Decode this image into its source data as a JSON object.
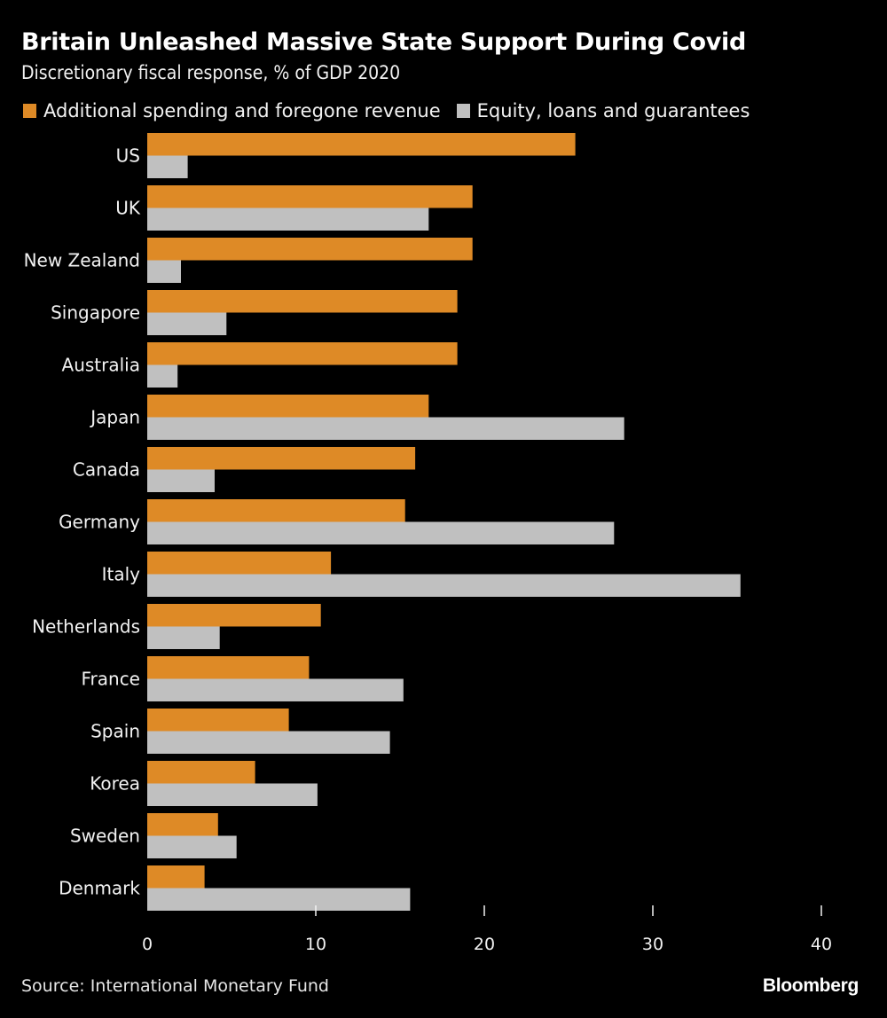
{
  "chart_data": {
    "type": "bar",
    "orientation": "horizontal",
    "title": "Britain Unleashed Massive State Support During Covid",
    "subtitle": "Discretionary fiscal response, % of GDP 2020",
    "xlabel": "",
    "ylabel": "",
    "xlim": [
      0,
      40
    ],
    "xticks": [
      0,
      10,
      20,
      30,
      40
    ],
    "grid": false,
    "legend_position": "top-left",
    "categories": [
      "US",
      "UK",
      "New Zealand",
      "Singapore",
      "Australia",
      "Japan",
      "Canada",
      "Germany",
      "Italy",
      "Netherlands",
      "France",
      "Spain",
      "Korea",
      "Sweden",
      "Denmark"
    ],
    "series": [
      {
        "name": "Additional spending and foregone revenue",
        "color": "#de8a26",
        "values": [
          25.4,
          19.3,
          19.3,
          18.4,
          18.4,
          16.7,
          15.9,
          15.3,
          10.9,
          10.3,
          9.6,
          8.4,
          6.4,
          4.2,
          3.4
        ]
      },
      {
        "name": "Equity, loans and guarantees",
        "color": "#c0c0c0",
        "values": [
          2.4,
          16.7,
          2.0,
          4.7,
          1.8,
          28.3,
          4.0,
          27.7,
          35.2,
          4.3,
          15.2,
          14.4,
          10.1,
          5.3,
          15.6
        ]
      }
    ],
    "source": "Source: International Monetary Fund"
  },
  "header": {
    "title": "Britain Unleashed Massive State Support During Covid",
    "subtitle": "Discretionary fiscal response, % of GDP 2020"
  },
  "legend": {
    "items": [
      {
        "label": "Additional spending and foregone revenue",
        "color": "#de8a26"
      },
      {
        "label": "Equity, loans and guarantees",
        "color": "#c0c0c0"
      }
    ]
  },
  "footer": {
    "source": "Source: International Monetary Fund",
    "brand": "Bloomberg"
  },
  "colors": {
    "background": "#000000",
    "text": "#f2f2f2",
    "orange": "#de8a26",
    "gray": "#c0c0c0"
  }
}
